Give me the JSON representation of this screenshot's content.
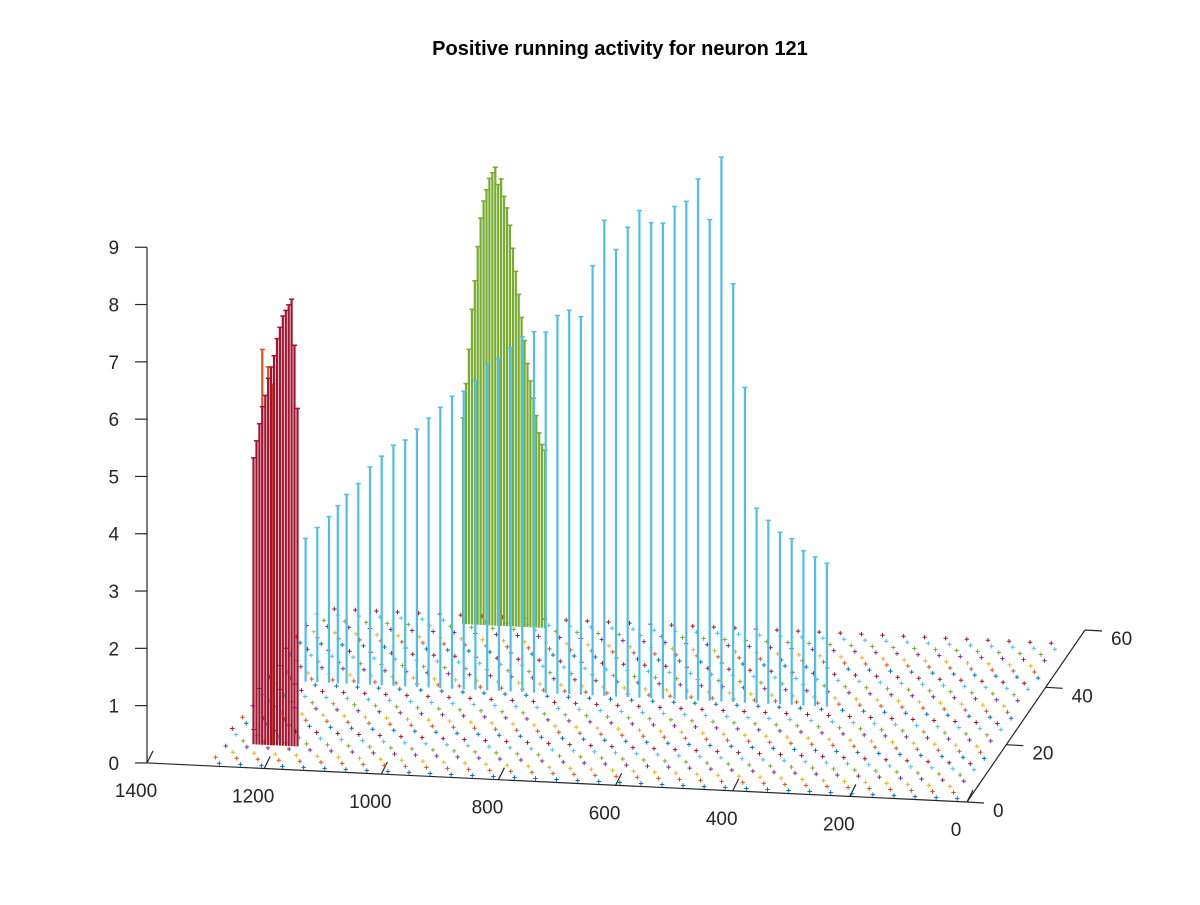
{
  "chart_data": {
    "type": "bar",
    "plot_kind": "3-D stem plot",
    "title": "Positive running activity for neuron 121",
    "xlabel": "",
    "ylabel": "",
    "zlabel": "",
    "xlim": [
      0,
      1400
    ],
    "ylim": [
      0,
      60
    ],
    "zlim": [
      0,
      9
    ],
    "x_ticks": [
      "0",
      "200",
      "400",
      "600",
      "800",
      "1000",
      "1200",
      "1400"
    ],
    "y_ticks": [
      "0",
      "20",
      "40",
      "60"
    ],
    "z_ticks": [
      "0",
      "1",
      "2",
      "3",
      "4",
      "5",
      "6",
      "7",
      "8",
      "9"
    ],
    "grid": false,
    "legend": "none",
    "marker": "+",
    "colors": [
      "#0072BD",
      "#D95319",
      "#EDB120",
      "#7E2F8E",
      "#77AC30",
      "#4DBEEE",
      "#A2142F"
    ],
    "baseline_rows_y": [
      1,
      3,
      5,
      7,
      9,
      11,
      13,
      15,
      17,
      19,
      21,
      23,
      25,
      27,
      29,
      31,
      33,
      35,
      37,
      39,
      41,
      43,
      45,
      47,
      49,
      51,
      53,
      55
    ],
    "stem_series": [
      {
        "color": "#D95319",
        "y": 8,
        "x": [
          1230,
          1220,
          1212
        ],
        "z": [
          6.9,
          6.6,
          6.3
        ]
      },
      {
        "color": "#A2142F",
        "y": 8,
        "x": [
          1245,
          1240,
          1235,
          1230,
          1225,
          1220,
          1215,
          1210,
          1205,
          1200,
          1195,
          1190,
          1185,
          1180,
          1175,
          1170
        ],
        "z": [
          5.0,
          5.3,
          5.6,
          5.9,
          6.1,
          6.4,
          6.6,
          6.8,
          7.1,
          7.3,
          7.5,
          7.6,
          7.7,
          7.8,
          7.0,
          5.9
        ]
      },
      {
        "color": "#4DBEEE",
        "y": 30,
        "x": [
          1230,
          1210,
          1190,
          1175,
          1160,
          1140,
          1120,
          1100,
          1080,
          1060,
          1040,
          1020,
          1000,
          980,
          960,
          940,
          920,
          900,
          880,
          860,
          840,
          820,
          800,
          780,
          760,
          740,
          720,
          700,
          680,
          660,
          640,
          620,
          600,
          580,
          560,
          540,
          520,
          500,
          480,
          460,
          440,
          420,
          400,
          380,
          360,
          340
        ],
        "z": [
          2.5,
          2.7,
          2.9,
          3.1,
          3.3,
          3.5,
          3.8,
          4.0,
          4.2,
          4.3,
          4.5,
          4.7,
          4.9,
          5.1,
          5.2,
          5.4,
          5.7,
          5.8,
          6.0,
          6.2,
          6.3,
          6.3,
          6.6,
          6.7,
          6.6,
          7.5,
          8.3,
          7.8,
          8.2,
          8.5,
          8.3,
          8.3,
          8.6,
          8.7,
          9.1,
          8.4,
          9.5,
          7.3,
          5.5,
          3.4,
          3.2,
          3.0,
          2.9,
          2.7,
          2.6,
          2.5
        ]
      },
      {
        "color": "#77AC30",
        "y": 52,
        "x": [
          1035,
          1030,
          1025,
          1020,
          1015,
          1010,
          1005,
          1000,
          995,
          990,
          985,
          980,
          975,
          970,
          965,
          960,
          955,
          950,
          945,
          940,
          935,
          930,
          925,
          920,
          915,
          910,
          905,
          900,
          895
        ],
        "z": [
          3.6,
          4.2,
          4.8,
          5.5,
          6.0,
          6.6,
          7.1,
          7.4,
          7.6,
          7.8,
          7.9,
          8.0,
          7.7,
          7.8,
          7.5,
          7.3,
          7.0,
          6.6,
          6.2,
          5.8,
          5.4,
          5.0,
          4.6,
          4.3,
          4.0,
          3.7,
          3.4,
          3.2,
          3.1
        ]
      }
    ]
  }
}
